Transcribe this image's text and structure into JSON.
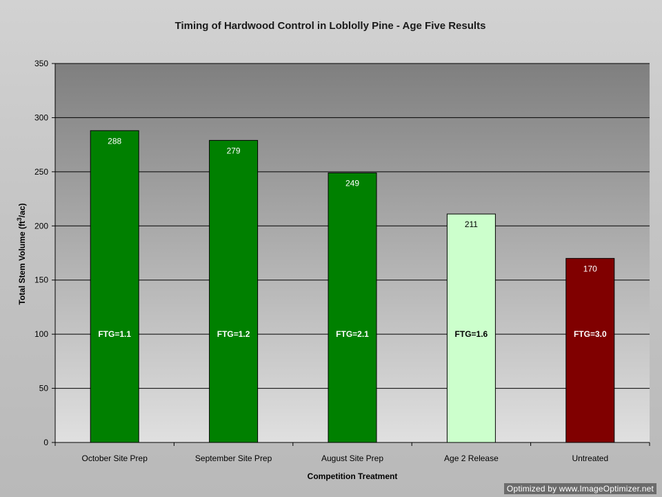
{
  "chart_data": {
    "type": "bar",
    "title": "Timing of Hardwood Control in Loblolly Pine - Age Five Results",
    "xlabel": "Competition Treatment",
    "ylabel_prefix": "Total Stem Volume (ft",
    "ylabel_superscript": "3",
    "ylabel_suffix": "/ac)",
    "ylim": [
      0,
      350
    ],
    "yticks": [
      0,
      50,
      100,
      150,
      200,
      250,
      300,
      350
    ],
    "grid": true,
    "legend": "none",
    "categories": [
      "October Site Prep",
      "September Site Prep",
      "August Site Prep",
      "Age 2 Release",
      "Untreated"
    ],
    "values": [
      288,
      279,
      249,
      211,
      170
    ],
    "value_labels": [
      "288",
      "279",
      "249",
      "211",
      "170"
    ],
    "annotations": [
      "FTG=1.1",
      "FTG=1.2",
      "FTG=2.1",
      "FTG=1.6",
      "FTG=3.0"
    ],
    "bar_colors": [
      "#008000",
      "#008000",
      "#008000",
      "#ccffcc",
      "#800000"
    ]
  },
  "watermark": "Optimized by www.ImageOptimizer.net"
}
